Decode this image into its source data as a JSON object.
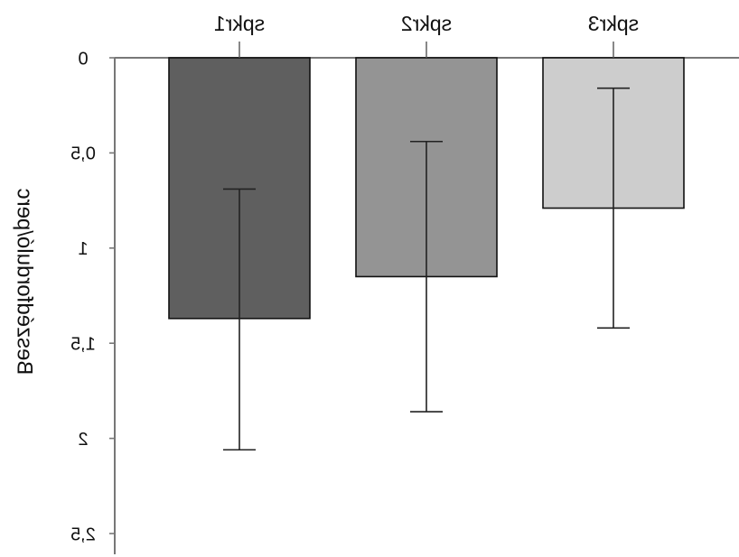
{
  "chart_data": {
    "type": "bar",
    "orientation": "mirrored-vertical",
    "title": "",
    "xlabel": "",
    "ylabel": "Beszédforduló/perc",
    "categories": [
      "spkr1",
      "spkr2",
      "spkr3"
    ],
    "values": [
      1.37,
      1.15,
      0.79
    ],
    "error_low": [
      0.69,
      0.44,
      0.16
    ],
    "error_high": [
      2.06,
      1.86,
      1.42
    ],
    "ylim": [
      0,
      2.5
    ],
    "yticks": [
      0,
      0.5,
      1,
      1.5,
      2,
      2.5
    ],
    "ytick_labels": [
      "0",
      "0,5",
      "1",
      "1,5",
      "2",
      "2,5"
    ],
    "colors": [
      "#5f5f5f",
      "#949494",
      "#cdcdcd"
    ],
    "grid": false,
    "legend": "none"
  }
}
